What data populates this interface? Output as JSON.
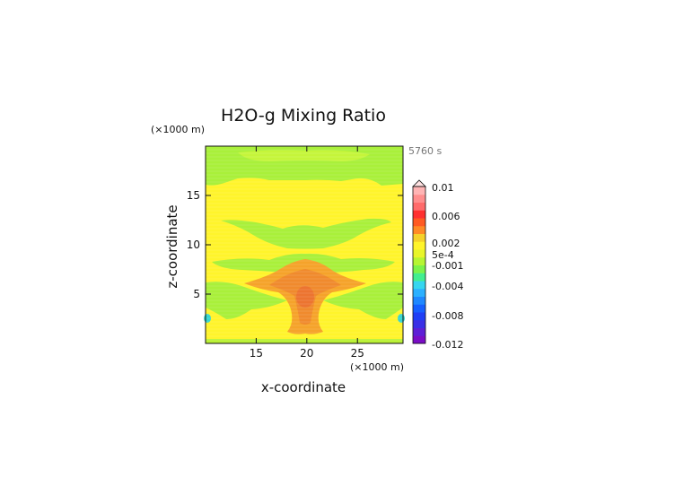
{
  "chart_data": {
    "type": "heatmap",
    "title": "H2O-g Mixing Ratio",
    "time_label": "5760 s",
    "xlabel": "x-coordinate",
    "ylabel": "z-coordinate",
    "x_scale_label": "(×1000 m)",
    "y_scale_label": "(×1000 m)",
    "xlim": [
      10,
      29.5
    ],
    "ylim": [
      0,
      20
    ],
    "x_ticks": [
      15,
      20,
      25
    ],
    "y_ticks": [
      5,
      10,
      15
    ],
    "x_tick_labels": [
      "15",
      "20",
      "25"
    ],
    "y_tick_labels": [
      "5",
      "10",
      "15"
    ],
    "colorbar": {
      "range": [
        -0.012,
        0.01
      ],
      "tick_labels": [
        "0.01",
        "0.006",
        "0.002",
        "5e-4",
        "-0.001",
        "-0.004",
        "-0.008",
        "-0.012"
      ],
      "colors": [
        "#7a0dc6",
        "#5d1fd6",
        "#3a2fe6",
        "#1f3ff5",
        "#1660ff",
        "#1f88ff",
        "#2bb0ff",
        "#36d6f0",
        "#42ee90",
        "#7cf34a",
        "#b6f533",
        "#e8f52a",
        "#fff42b",
        "#f5d12a",
        "#ff8a25",
        "#ff5a22",
        "#ff3030",
        "#ff6b6b",
        "#ff8e8e",
        "#ffb4b4"
      ]
    },
    "field_colors": {
      "background": "#fff42b",
      "upper_band": "#a9f03a",
      "upper_band_light": "#c5f53a",
      "mid_band": "#a9f03a",
      "core_outer": "#f5a32a",
      "core_mid": "#f08a2d",
      "core_inner": "#ec7430",
      "edge_cyan": "#38d6d0"
    }
  }
}
